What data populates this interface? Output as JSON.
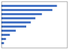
{
  "chart_data": {
    "type": "bar",
    "orientation": "horizontal",
    "categories": [
      null,
      null,
      null,
      null,
      null,
      null,
      null,
      null,
      null,
      null
    ],
    "values": [
      85,
      78,
      62,
      52,
      45,
      38,
      22,
      13,
      7,
      4
    ],
    "color": "#4472c4",
    "xlim": [
      0,
      100.3
    ],
    "tick_labels": false
  }
}
